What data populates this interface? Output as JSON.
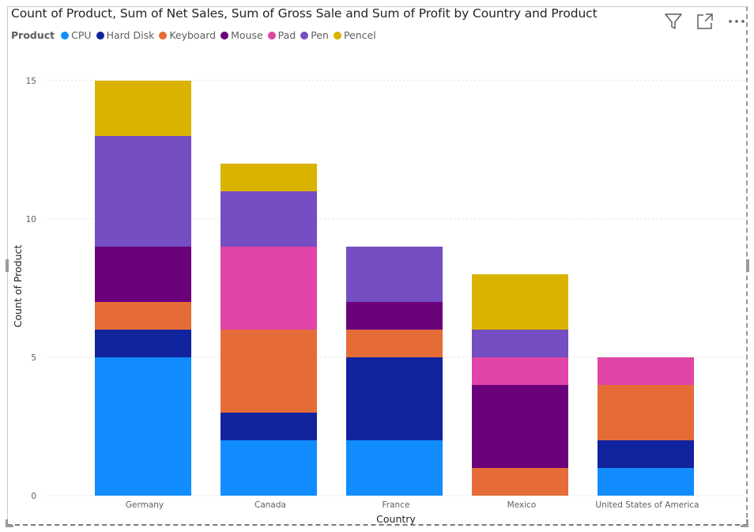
{
  "title": "Count of Product, Sum of Net Sales, Sum of Gross Sale and Sum of Profit by Country and Product",
  "legend": {
    "title": "Product",
    "items": [
      {
        "label": "CPU",
        "color": "#118DFF"
      },
      {
        "label": "Hard Disk",
        "color": "#12239E"
      },
      {
        "label": "Keyboard",
        "color": "#E66C37"
      },
      {
        "label": "Mouse",
        "color": "#6B007B"
      },
      {
        "label": "Pad",
        "color": "#E044A7"
      },
      {
        "label": "Pen",
        "color": "#744EC2"
      },
      {
        "label": "Pencel",
        "color": "#D9B300"
      }
    ]
  },
  "toolbar": {
    "filter_icon": "filter-icon",
    "focus_icon": "focus-mode-icon",
    "more_icon": "more-options-icon"
  },
  "chart_data": {
    "type": "bar",
    "stacked": true,
    "xlabel": "Country",
    "ylabel": "Count of Product",
    "ylim": [
      0,
      15
    ],
    "yticks": [
      0,
      5,
      10,
      15
    ],
    "grid": true,
    "legend_position": "top-left",
    "categories": [
      "Germany",
      "Canada",
      "France",
      "Mexico",
      "United States of America"
    ],
    "series": [
      {
        "name": "CPU",
        "color": "#118DFF",
        "values": [
          5,
          2,
          2,
          0,
          1
        ]
      },
      {
        "name": "Hard Disk",
        "color": "#12239E",
        "values": [
          1,
          1,
          3,
          0,
          1
        ]
      },
      {
        "name": "Keyboard",
        "color": "#E66C37",
        "values": [
          1,
          3,
          1,
          1,
          2
        ]
      },
      {
        "name": "Mouse",
        "color": "#6B007B",
        "values": [
          2,
          0,
          1,
          3,
          0
        ]
      },
      {
        "name": "Pad",
        "color": "#E044A7",
        "values": [
          0,
          3,
          0,
          1,
          1
        ]
      },
      {
        "name": "Pen",
        "color": "#744EC2",
        "values": [
          4,
          2,
          2,
          1,
          0
        ]
      },
      {
        "name": "Pencel",
        "color": "#D9B300",
        "values": [
          2,
          1,
          0,
          2,
          0
        ]
      }
    ]
  }
}
